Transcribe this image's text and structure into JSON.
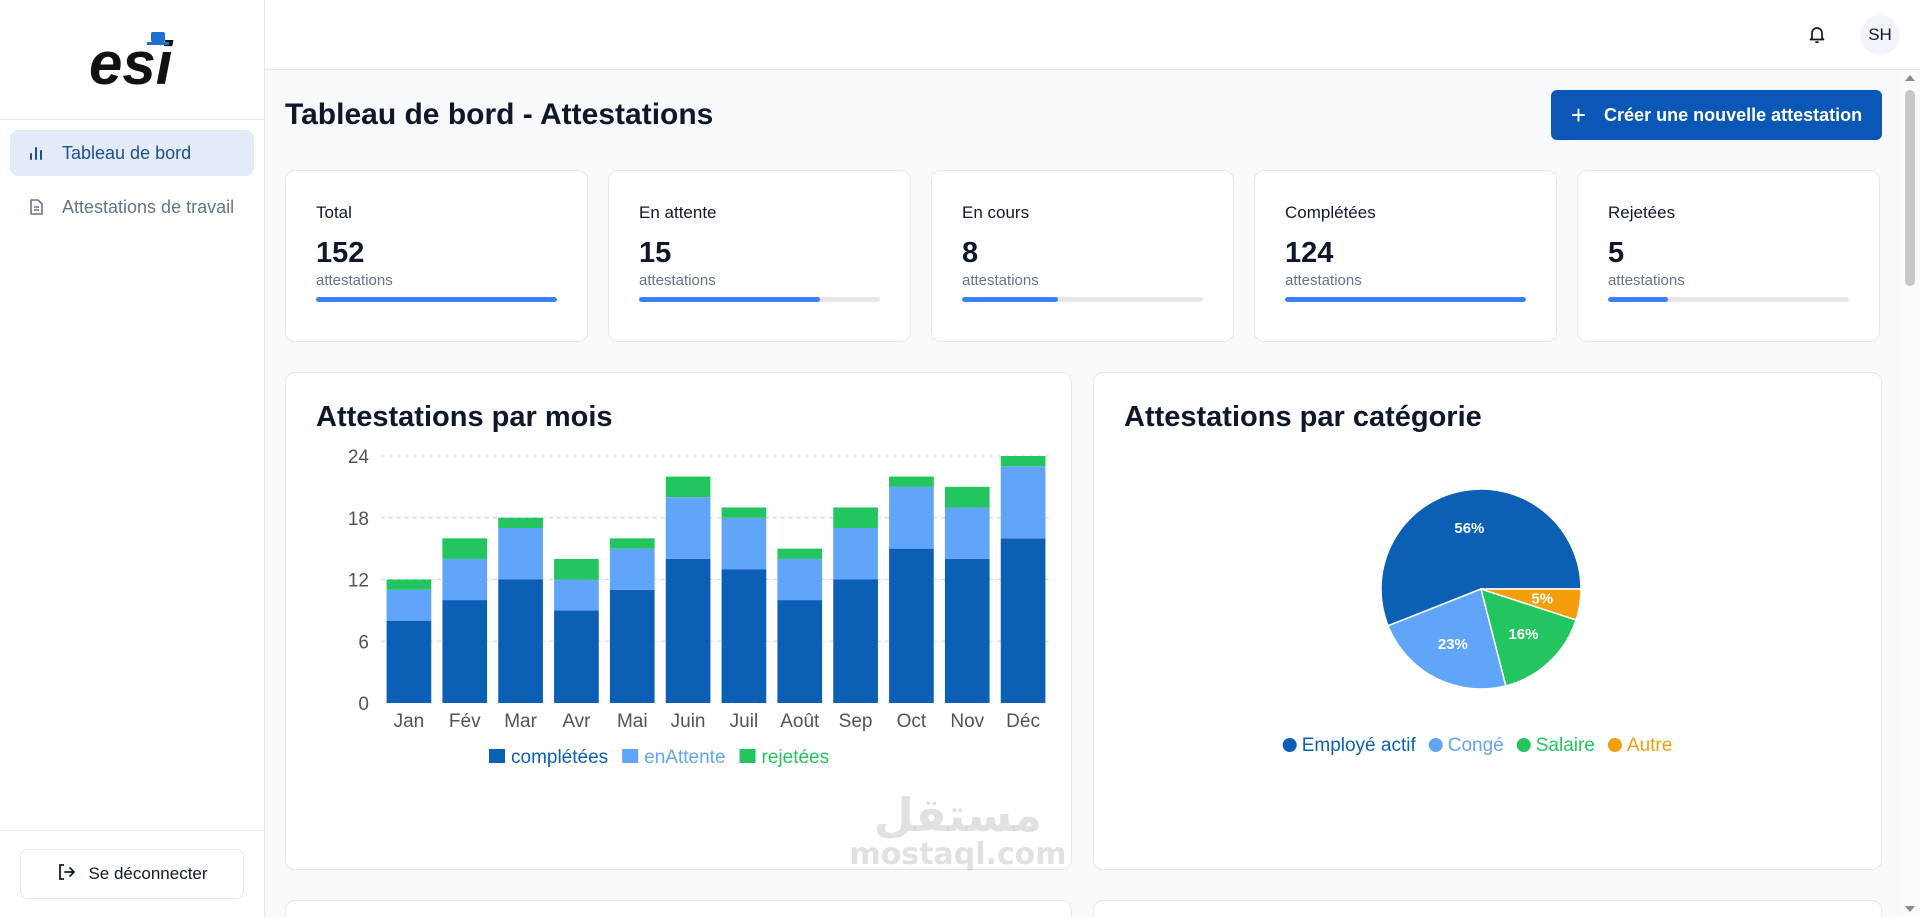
{
  "sidebar": {
    "logo_text": "esi",
    "items": [
      {
        "label": "Tableau de bord",
        "icon": "bar-chart-icon",
        "active": true
      },
      {
        "label": "Attestations de travail",
        "icon": "document-icon",
        "active": false
      }
    ],
    "logout_label": "Se déconnecter"
  },
  "header": {
    "avatar_initials": "SH"
  },
  "main": {
    "title": "Tableau de bord - Attestations",
    "create_button_label": "Créer une nouvelle attestation"
  },
  "stats": [
    {
      "label": "Total",
      "value": "152",
      "unit": "attestations",
      "progress": 1.0
    },
    {
      "label": "En attente",
      "value": "15",
      "unit": "attestations",
      "progress": 0.75
    },
    {
      "label": "En cours",
      "value": "8",
      "unit": "attestations",
      "progress": 0.4
    },
    {
      "label": "Complétées",
      "value": "124",
      "unit": "attestations",
      "progress": 1.0
    },
    {
      "label": "Rejetées",
      "value": "5",
      "unit": "attestations",
      "progress": 0.25
    }
  ],
  "chart_data": [
    {
      "type": "bar",
      "stacked": true,
      "title": "Attestations par mois",
      "categories": [
        "Jan",
        "Fév",
        "Mar",
        "Avr",
        "Mai",
        "Juin",
        "Juil",
        "Août",
        "Sep",
        "Oct",
        "Nov",
        "Déc"
      ],
      "series": [
        {
          "name": "complétées",
          "color": "#0b5fb5",
          "values": [
            8,
            10,
            12,
            9,
            11,
            14,
            13,
            10,
            12,
            15,
            14,
            16
          ]
        },
        {
          "name": "enAttente",
          "color": "#60a5fa",
          "values": [
            3,
            4,
            5,
            3,
            4,
            6,
            5,
            4,
            5,
            6,
            5,
            7
          ]
        },
        {
          "name": "rejetées",
          "color": "#22c55e",
          "values": [
            1,
            2,
            1,
            2,
            1,
            2,
            1,
            1,
            2,
            1,
            2,
            1
          ]
        }
      ],
      "yticks": [
        0,
        6,
        12,
        18,
        24
      ],
      "ylim": [
        0,
        24
      ],
      "grid": true,
      "legend": "bottom"
    },
    {
      "type": "pie",
      "title": "Attestations par catégorie",
      "slices": [
        {
          "name": "Employé actif",
          "value": 56,
          "label": "56%",
          "color": "#0b5fb5"
        },
        {
          "name": "Congé",
          "value": 23,
          "label": "23%",
          "color": "#60a5fa"
        },
        {
          "name": "Salaire",
          "value": 16,
          "label": "16%",
          "color": "#22c55e"
        },
        {
          "name": "Autre",
          "value": 5,
          "label": "5%",
          "color": "#f59e0b"
        }
      ],
      "legend": "bottom"
    }
  ],
  "watermark": {
    "text": "mostaql.com",
    "arabic": "مستقل"
  }
}
